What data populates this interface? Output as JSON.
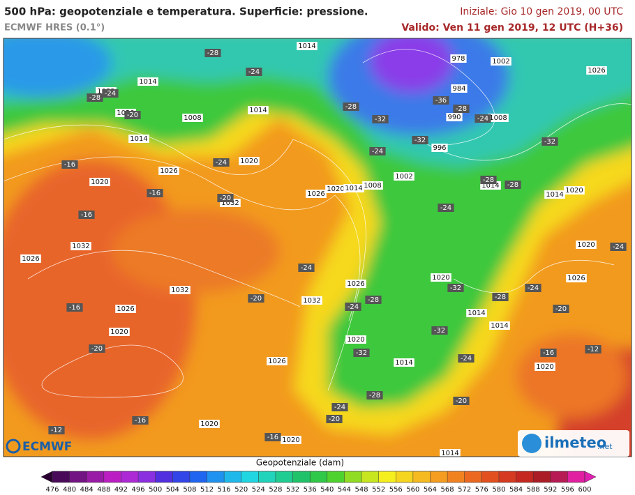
{
  "header": {
    "title": "500 hPa: geopotenziale e temperatura. Superficie: pressione.",
    "model": "ECMWF HRES (0.1°)",
    "init": "Iniziale: Gio 10 gen 2019, 00 UTC",
    "valid": "Valido: Ven 11 gen 2019, 12 UTC (H+36)"
  },
  "map": {
    "pressure_labels": [
      "1014",
      "978",
      "1002",
      "1026",
      "1014",
      "1032",
      "1014",
      "1008",
      "1020",
      "984",
      "990",
      "1008",
      "1014",
      "996",
      "1020",
      "1026",
      "1002",
      "1020",
      "1026",
      "1020",
      "1014",
      "1008",
      "1014",
      "1032",
      "1014",
      "1020",
      "1032",
      "1020",
      "1026",
      "1026",
      "1020",
      "1026",
      "1032",
      "1032",
      "1026",
      "1014",
      "1020",
      "1014",
      "1020",
      "1014",
      "1026",
      "1020",
      "1020",
      "1020",
      "1014"
    ],
    "temperature_labels": [
      "-28",
      "-24",
      "-28",
      "-24",
      "-20",
      "-28",
      "-32",
      "-36",
      "-28",
      "-24",
      "-32",
      "-32",
      "-24",
      "-24",
      "-16",
      "-16",
      "-20",
      "-16",
      "-28",
      "-28",
      "-24",
      "-24",
      "-24",
      "-20",
      "-32",
      "-28",
      "-24",
      "-24",
      "-28",
      "-20",
      "-16",
      "-20",
      "-32",
      "-32",
      "-24",
      "-16",
      "-12",
      "-28",
      "-24",
      "-20",
      "-20",
      "-16",
      "-12",
      "-16"
    ],
    "logos": {
      "ecmwf": "ECMWF",
      "ilmeteo": "ilmeteo",
      "ilmeteo_suffix": ".net"
    }
  },
  "colorbar": {
    "title": "Geopotenziale (dam)",
    "ticks": [
      476,
      480,
      484,
      488,
      492,
      496,
      500,
      504,
      508,
      512,
      516,
      520,
      524,
      528,
      532,
      536,
      540,
      544,
      548,
      552,
      556,
      560,
      564,
      568,
      572,
      576,
      580,
      584,
      588,
      592,
      596,
      600
    ]
  }
}
